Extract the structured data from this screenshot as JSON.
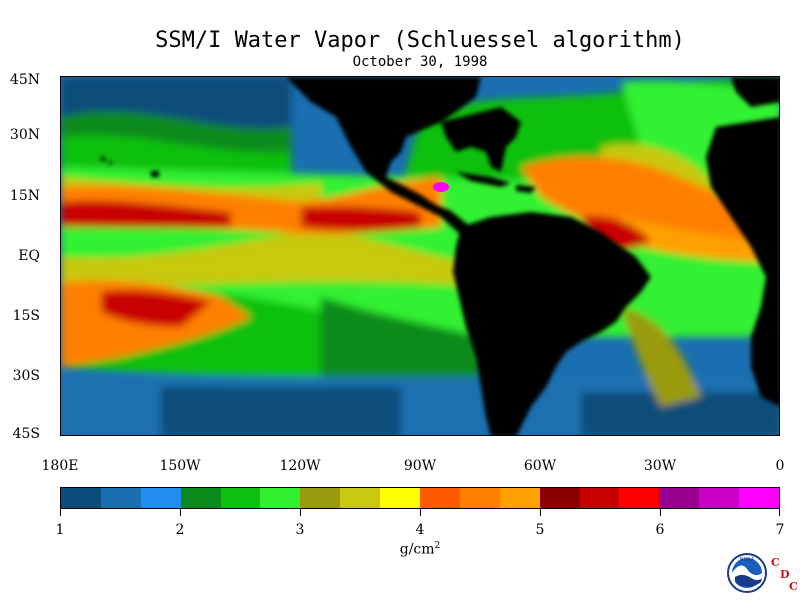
{
  "title": "SSM/I Water Vapor (Schluessel algorithm)",
  "subtitle": "October 30, 1998",
  "lat_labels": [
    "45N",
    "30N",
    "15N",
    "EQ",
    "15S",
    "30S",
    "45S"
  ],
  "lon_labels": [
    "180E",
    "150W",
    "120W",
    "90W",
    "60W",
    "30W",
    "0"
  ],
  "colorbar": {
    "min": 1,
    "max": 7,
    "tick_labels": [
      "1",
      "2",
      "3",
      "4",
      "5",
      "6",
      "7"
    ],
    "units": "g/cm",
    "units_exponent": "2",
    "colors": [
      "#0a4d7a",
      "#1a6fb0",
      "#1f8ef0",
      "#0a8a1a",
      "#10c010",
      "#30f030",
      "#9a9a10",
      "#c8c810",
      "#ffff00",
      "#ff5a00",
      "#ff8000",
      "#ffa000",
      "#8a0000",
      "#c80000",
      "#ff0000",
      "#9a0090",
      "#c800c8",
      "#ff00ff"
    ]
  },
  "logo": {
    "name": "noaa-logo",
    "text": "NOAA",
    "cdc_letters": [
      "C",
      "D",
      "C"
    ]
  },
  "map_colors": {
    "land": "#000000",
    "ocean_dry": "#1a6fb0"
  }
}
